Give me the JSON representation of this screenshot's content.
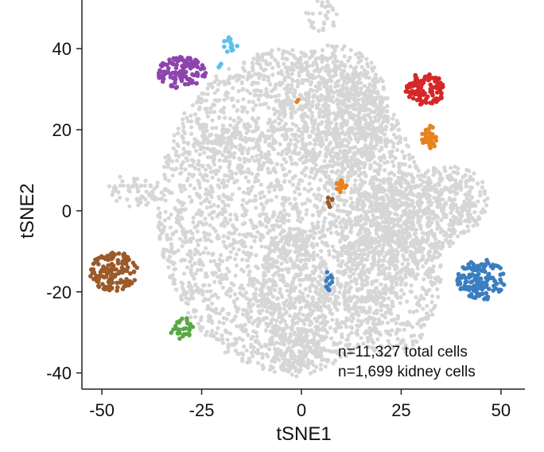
{
  "chart_data": {
    "type": "scatter",
    "title": "",
    "xlabel": "tSNE1",
    "ylabel": "tSNE2",
    "xlim": [
      -55,
      56
    ],
    "ylim": [
      -44,
      52
    ],
    "xticks": [
      -50,
      -25,
      0,
      25,
      50
    ],
    "yticks": [
      -40,
      -20,
      0,
      20,
      40
    ],
    "grid": false,
    "background_color": "#d6d6d6",
    "annotations": [
      "n=11,327 total cells",
      "n=1,699 kidney cells"
    ],
    "background_regions": [
      {
        "cx": -3,
        "cy": 0,
        "rx": 33,
        "ry": 40
      },
      {
        "cx": 8,
        "cy": 25,
        "rx": 14,
        "ry": 16
      },
      {
        "cx": -16,
        "cy": 16,
        "rx": 12,
        "ry": 4
      },
      {
        "cx": -42,
        "cy": 5,
        "rx": 7,
        "ry": 4
      },
      {
        "cx": -2,
        "cy": -22,
        "rx": 9,
        "ry": 18
      },
      {
        "cx": 22,
        "cy": -14,
        "rx": 13,
        "ry": 22
      },
      {
        "cx": 30,
        "cy": 0,
        "rx": 13,
        "ry": 11
      },
      {
        "cx": 38,
        "cy": 2,
        "rx": 9,
        "ry": 9
      },
      {
        "cx": 15,
        "cy": 20,
        "rx": 7,
        "ry": 14
      },
      {
        "cx": 5,
        "cy": 48,
        "rx": 4,
        "ry": 4
      },
      {
        "cx": 0,
        "cy": -35,
        "rx": 7,
        "ry": 6
      }
    ],
    "series": [
      {
        "color": "#8e44ad",
        "clusters": [
          {
            "cx": -30,
            "cy": 34,
            "rx": 6,
            "ry": 4,
            "n": 120
          }
        ]
      },
      {
        "color": "#5bc0eb",
        "clusters": [
          {
            "cx": -18,
            "cy": 41,
            "rx": 2,
            "ry": 2,
            "n": 14
          },
          {
            "cx": -20,
            "cy": 36,
            "rx": 1,
            "ry": 1,
            "n": 3
          }
        ]
      },
      {
        "color": "#d62728",
        "clusters": [
          {
            "cx": 31,
            "cy": 30,
            "rx": 5,
            "ry": 4,
            "n": 110
          }
        ]
      },
      {
        "color": "#e8821e",
        "clusters": [
          {
            "cx": 32,
            "cy": 18,
            "rx": 2,
            "ry": 3,
            "n": 30
          },
          {
            "cx": 10,
            "cy": 6,
            "rx": 1.5,
            "ry": 1.5,
            "n": 14
          },
          {
            "cx": -1,
            "cy": 27,
            "rx": 0.5,
            "ry": 0.5,
            "n": 2
          }
        ]
      },
      {
        "color": "#9b5a2a",
        "clusters": [
          {
            "cx": -47,
            "cy": -15,
            "rx": 6,
            "ry": 5,
            "n": 130
          },
          {
            "cx": 7,
            "cy": 2,
            "rx": 1,
            "ry": 1.5,
            "n": 6
          }
        ]
      },
      {
        "color": "#3a7dc0",
        "clusters": [
          {
            "cx": 45,
            "cy": -17,
            "rx": 6,
            "ry": 5,
            "n": 140
          },
          {
            "cx": 7,
            "cy": -17,
            "rx": 1,
            "ry": 3,
            "n": 10
          }
        ]
      },
      {
        "color": "#5aa845",
        "clusters": [
          {
            "cx": -30,
            "cy": -29,
            "rx": 3,
            "ry": 3,
            "n": 28
          }
        ]
      }
    ]
  }
}
